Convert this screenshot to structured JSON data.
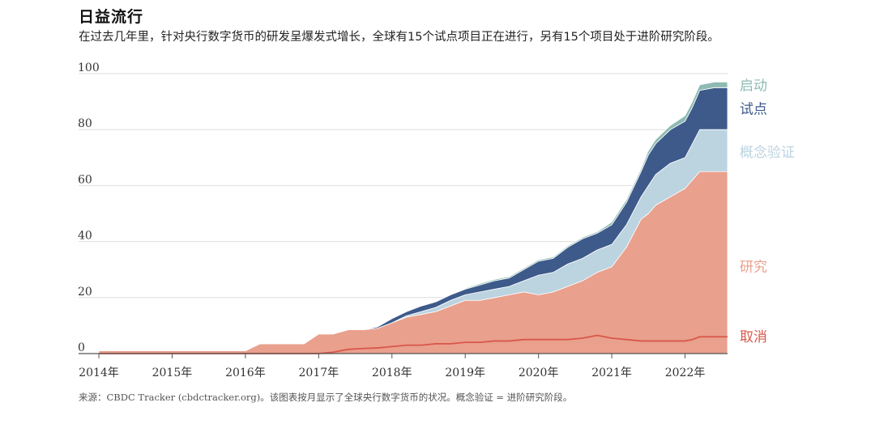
{
  "header": {
    "title": "日益流行",
    "subtitle": "在过去几年里，针对央行数字货币的研发呈爆发式增长，全球有15个试点项目正在进行，另有15个项目处于进阶研究阶段。"
  },
  "footnote": "来源：CBDC Tracker (cbdctracker.org)。该图表按月显示了全球央行数字货币的状况。概念验证 = 进阶研究阶段。",
  "colors": {
    "research": "#e9a08d",
    "proof_of_concept": "#bcd3e0",
    "pilot": "#3d5a8a",
    "launch": "#8ebab3",
    "cancelled": "#d9574a",
    "gridline": "#dedede"
  },
  "chart_data": {
    "type": "area",
    "stacked": true,
    "ylim": [
      0,
      100
    ],
    "yticks": [
      "0",
      "20",
      "40",
      "60",
      "80",
      "100"
    ],
    "xlim": [
      2014.0,
      2022.58
    ],
    "xticks": [
      "2014年",
      "2015年",
      "2016年",
      "2017年",
      "2018年",
      "2019年",
      "2020年",
      "2021年",
      "2022年"
    ],
    "grid": true,
    "legend": "right, labels at series ends",
    "x": [
      2014.0,
      2015.0,
      2016.0,
      2016.2,
      2016.5,
      2016.8,
      2017.0,
      2017.2,
      2017.4,
      2017.6,
      2017.8,
      2018.0,
      2018.2,
      2018.4,
      2018.6,
      2018.8,
      2019.0,
      2019.2,
      2019.4,
      2019.6,
      2019.8,
      2020.0,
      2020.2,
      2020.4,
      2020.6,
      2020.8,
      2021.0,
      2021.2,
      2021.4,
      2021.5,
      2021.6,
      2021.8,
      2022.0,
      2022.1,
      2022.2,
      2022.4,
      2022.58
    ],
    "series": [
      {
        "name": "取消",
        "role": "line",
        "values": [
          0,
          0,
          0,
          0,
          0,
          0,
          0,
          0.5,
          1.5,
          1.8,
          2,
          2.5,
          3,
          3,
          3.5,
          3.5,
          4,
          4,
          4.5,
          4.5,
          5,
          5,
          5,
          5,
          5.5,
          6.5,
          5.5,
          5,
          4.5,
          4.5,
          4.5,
          4.5,
          4.5,
          5,
          6,
          6,
          6
        ]
      },
      {
        "name": "研究",
        "values": [
          1,
          1,
          1,
          3.5,
          3.5,
          3.5,
          7,
          7,
          8.5,
          8.5,
          9,
          11,
          13,
          14,
          15,
          17,
          19,
          19,
          20,
          21,
          22,
          21,
          22,
          24,
          26,
          29,
          31,
          38,
          48,
          50,
          53,
          56,
          59,
          62,
          65,
          65,
          65
        ]
      },
      {
        "name": "概念验证",
        "values": [
          0,
          0,
          0,
          0,
          0,
          0,
          0,
          0,
          0,
          0,
          0,
          0,
          0.5,
          1,
          1.5,
          2,
          2,
          3,
          3,
          3,
          4,
          7,
          7,
          8,
          8,
          8,
          8,
          8,
          8,
          10,
          11,
          12,
          11,
          13,
          15,
          15,
          15
        ]
      },
      {
        "name": "试点",
        "values": [
          0,
          0,
          0,
          0,
          0,
          0,
          0,
          0,
          0,
          0,
          0.5,
          1.5,
          1.5,
          2,
          2,
          2,
          2,
          2.5,
          3,
          3,
          4,
          5,
          5,
          6,
          7,
          6,
          7,
          8,
          9,
          11,
          11,
          12,
          13,
          13,
          14,
          15,
          15
        ]
      },
      {
        "name": "启动",
        "values": [
          0,
          0,
          0,
          0,
          0,
          0,
          0,
          0,
          0,
          0,
          0,
          0,
          0,
          0,
          0,
          0,
          0.3,
          0.5,
          0.5,
          0.5,
          0.5,
          0.5,
          0.5,
          0.5,
          0.5,
          0.5,
          1,
          1,
          1,
          1.5,
          1.5,
          1.5,
          2,
          2,
          2,
          2,
          2
        ]
      }
    ]
  }
}
